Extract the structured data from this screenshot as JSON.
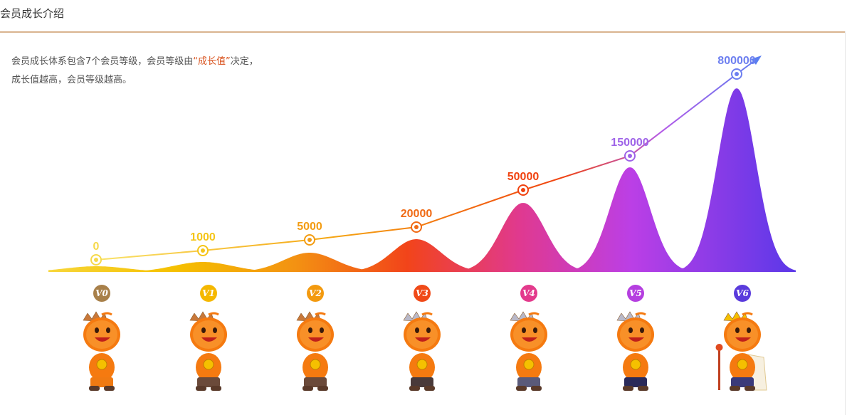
{
  "header": {
    "title": "会员成长介绍"
  },
  "intro": {
    "line1_a": "会员成长体系包含7个会员等级，会员等级由",
    "line1_quote_open": "“",
    "highlight": "成长值",
    "line1_quote_close": "”",
    "line1_b": "决定，",
    "line2": "成长值越高，会员等级越高。"
  },
  "colors": {
    "header_border": "#d9b48f",
    "highlight": "#d9531e"
  },
  "chart_data": {
    "type": "line",
    "title": "",
    "xlabel": "",
    "ylabel": "",
    "grid": false,
    "categories": [
      "V0",
      "V1",
      "V2",
      "V3",
      "V4",
      "V5",
      "V6"
    ],
    "values": [
      0,
      1000,
      5000,
      20000,
      50000,
      150000,
      800000
    ],
    "value_labels": [
      "0",
      "1000",
      "5000",
      "20000",
      "50000",
      "150000",
      "800000"
    ],
    "scale": "non-linear (rank-spaced)",
    "point_colors": [
      "#f6d94a",
      "#f5c518",
      "#f39c12",
      "#f06a14",
      "#f0420f",
      "#9e63e8",
      "#6d7ff0"
    ],
    "peak_colors": [
      "#f7d63a",
      "#f5c000",
      "#f39212",
      "#f24a16",
      "#e0398f",
      "#bb3fe6",
      "#5b38e8"
    ],
    "badge_colors": [
      "#a8804a",
      "#f5b800",
      "#f39a0f",
      "#f04a18",
      "#e33a8c",
      "#b53fe0",
      "#5a3bdc"
    ],
    "mascot_icons": [
      "mascot-v0-icon",
      "mascot-v1-icon",
      "mascot-v2-icon",
      "mascot-v3-icon",
      "mascot-v4-icon",
      "mascot-v5-icon",
      "mascot-v6-icon"
    ]
  }
}
